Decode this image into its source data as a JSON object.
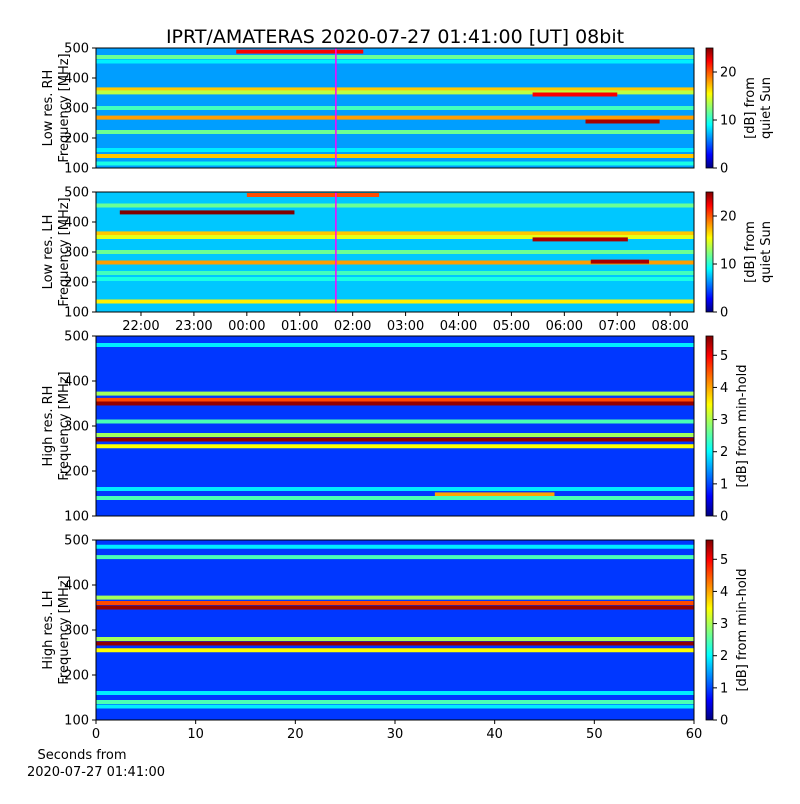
{
  "chart_data": [
    {
      "type": "spectrogram",
      "title": "IPRT/AMATERAS 2020-07-27 01:41:00 [UT]   08bit",
      "ylabel": [
        "Low res. RH",
        "Frequency [MHz]"
      ],
      "ylim": [
        100,
        500
      ],
      "yticks": [
        100,
        200,
        300,
        400,
        500
      ],
      "xlim": [
        21.15,
        32.45
      ],
      "marker_x": 25.683,
      "marker_color": "#ff00ff",
      "colorbar_label": [
        "[dB] from",
        "quiet Sun"
      ],
      "clim": [
        0,
        25
      ],
      "cticks": [
        0,
        10,
        20
      ],
      "background": 7,
      "bands": [
        {
          "freq": 488,
          "value": 22,
          "x": [
            23.8,
            26.2
          ]
        },
        {
          "freq": 470,
          "value": 12
        },
        {
          "freq": 455,
          "value": 9
        },
        {
          "freq": 362,
          "value": 17
        },
        {
          "freq": 352,
          "value": 14
        },
        {
          "freq": 345,
          "value": 22,
          "x": [
            29.4,
            31.0
          ]
        },
        {
          "freq": 300,
          "value": 11
        },
        {
          "freq": 268,
          "value": 18
        },
        {
          "freq": 255,
          "value": 24,
          "x": [
            30.4,
            31.8
          ]
        },
        {
          "freq": 220,
          "value": 12
        },
        {
          "freq": 160,
          "value": 9
        },
        {
          "freq": 140,
          "value": 17
        },
        {
          "freq": 115,
          "value": 10
        }
      ]
    },
    {
      "type": "spectrogram",
      "ylabel": [
        "Low res. LH",
        "Frequency [MHz]"
      ],
      "ylim": [
        100,
        500
      ],
      "yticks": [
        100,
        200,
        300,
        400,
        500
      ],
      "xlim": [
        21.15,
        32.45
      ],
      "xticks": [
        {
          "value": 22,
          "label": "22:00"
        },
        {
          "value": 23,
          "label": "23:00"
        },
        {
          "value": 24,
          "label": "00:00"
        },
        {
          "value": 25,
          "label": "01:00"
        },
        {
          "value": 26,
          "label": "02:00"
        },
        {
          "value": 27,
          "label": "03:00"
        },
        {
          "value": 28,
          "label": "04:00"
        },
        {
          "value": 29,
          "label": "05:00"
        },
        {
          "value": 30,
          "label": "06:00"
        },
        {
          "value": 31,
          "label": "07:00"
        },
        {
          "value": 32,
          "label": "08:00"
        }
      ],
      "marker_x": 25.683,
      "marker_color": "#ff00ff",
      "colorbar_label": [
        "[dB] from",
        "quiet Sun"
      ],
      "clim": [
        0,
        25
      ],
      "cticks": [
        0,
        10,
        20
      ],
      "background": 8,
      "bands": [
        {
          "freq": 490,
          "value": 20,
          "x": [
            24.0,
            26.5
          ]
        },
        {
          "freq": 455,
          "value": 12
        },
        {
          "freq": 432,
          "value": 25,
          "x": [
            21.6,
            24.9
          ]
        },
        {
          "freq": 362,
          "value": 17
        },
        {
          "freq": 350,
          "value": 15
        },
        {
          "freq": 342,
          "value": 24,
          "x": [
            29.4,
            31.2
          ]
        },
        {
          "freq": 300,
          "value": 12
        },
        {
          "freq": 265,
          "value": 18
        },
        {
          "freq": 268,
          "value": 24,
          "x": [
            30.5,
            31.6
          ]
        },
        {
          "freq": 230,
          "value": 11
        },
        {
          "freq": 210,
          "value": 10
        },
        {
          "freq": 135,
          "value": 16
        }
      ]
    },
    {
      "type": "spectrogram",
      "ylabel": [
        "High res. RH",
        "Frequency [MHz]"
      ],
      "ylim": [
        100,
        500
      ],
      "yticks": [
        100,
        200,
        300,
        400,
        500
      ],
      "xlim": [
        0,
        60
      ],
      "colorbar_label": [
        "[dB] from min-hold"
      ],
      "clim": [
        0,
        5.6
      ],
      "cticks": [
        0,
        1,
        2,
        3,
        4,
        5
      ],
      "background": 1,
      "bands": [
        {
          "freq": 480,
          "value": 2
        },
        {
          "freq": 372,
          "value": 3
        },
        {
          "freq": 358,
          "value": 4.5
        },
        {
          "freq": 350,
          "value": 5.5
        },
        {
          "freq": 310,
          "value": 2.5
        },
        {
          "freq": 280,
          "value": 3
        },
        {
          "freq": 270,
          "value": 5.5
        },
        {
          "freq": 255,
          "value": 3.5
        },
        {
          "freq": 160,
          "value": 2
        },
        {
          "freq": 148,
          "value": 4,
          "x": [
            34,
            46
          ]
        },
        {
          "freq": 140,
          "value": 2.5
        }
      ]
    },
    {
      "type": "spectrogram",
      "ylabel": [
        "High res. LH",
        "Frequency [MHz]"
      ],
      "ylim": [
        100,
        500
      ],
      "yticks": [
        100,
        200,
        300,
        400,
        500
      ],
      "xlim": [
        0,
        60
      ],
      "xticks": [
        0,
        10,
        20,
        30,
        40,
        50,
        60
      ],
      "xlabel": [
        "Seconds from",
        "2020-07-27 01:41:00"
      ],
      "colorbar_label": [
        "[dB] from min-hold"
      ],
      "clim": [
        0,
        5.6
      ],
      "cticks": [
        0,
        1,
        2,
        3,
        4,
        5
      ],
      "background": 1,
      "bands": [
        {
          "freq": 485,
          "value": 2
        },
        {
          "freq": 462,
          "value": 2.5
        },
        {
          "freq": 372,
          "value": 3
        },
        {
          "freq": 360,
          "value": 4.5
        },
        {
          "freq": 350,
          "value": 5.5
        },
        {
          "freq": 280,
          "value": 3
        },
        {
          "freq": 270,
          "value": 5.5
        },
        {
          "freq": 255,
          "value": 3.5
        },
        {
          "freq": 160,
          "value": 2
        },
        {
          "freq": 140,
          "value": 2.5
        },
        {
          "freq": 130,
          "value": 2
        }
      ]
    }
  ]
}
